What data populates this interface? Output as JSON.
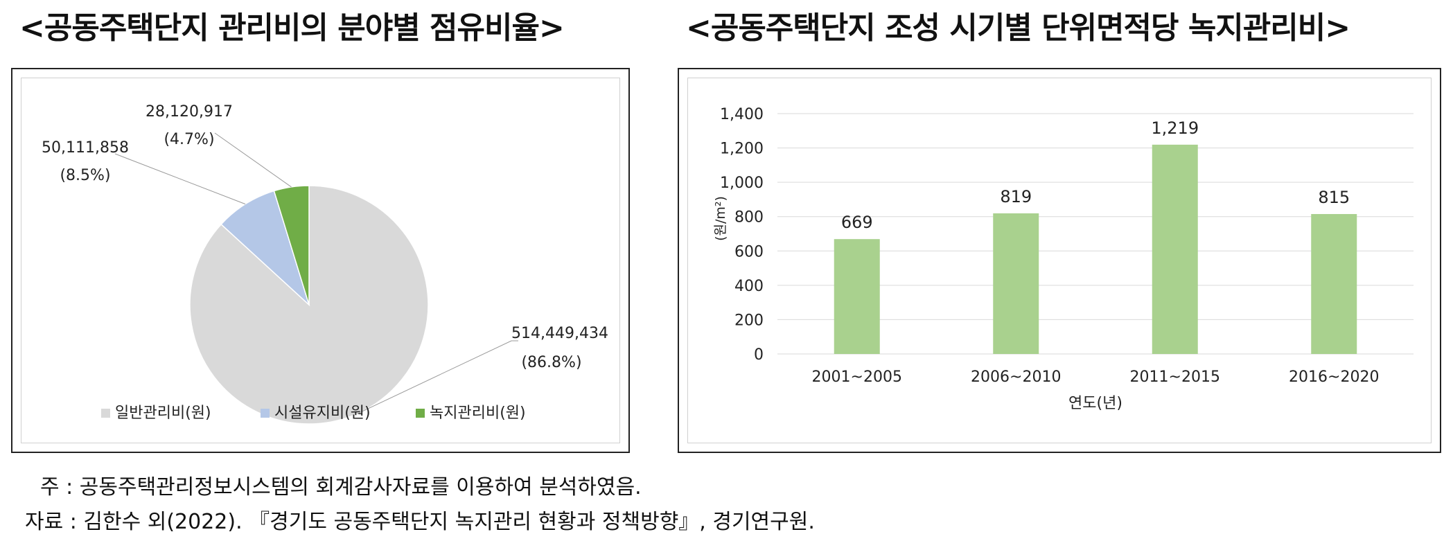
{
  "titles": {
    "left": "<공동주택단지 관리비의 분야별 점유비율>",
    "right": "<공동주택단지 조성 시기별 단위면적당 녹지관리비>"
  },
  "chart_data": [
    {
      "type": "pie",
      "title": "",
      "slices": [
        {
          "name": "일반관리비(원)",
          "value": 514449434,
          "label": "514,449,434",
          "percent_label": "(86.8%)",
          "color": "#d9d9d9"
        },
        {
          "name": "시설유지비(원)",
          "value": 50111858,
          "label": "50,111,858",
          "percent_label": "(8.5%)",
          "color": "#b4c7e7"
        },
        {
          "name": "녹지관리비(원)",
          "value": 28120917,
          "label": "28,120,917",
          "percent_label": "(4.7%)",
          "color": "#70ad47"
        }
      ],
      "legend_position": "bottom"
    },
    {
      "type": "bar",
      "title": "",
      "categories": [
        "2001~2005",
        "2006~2010",
        "2011~2015",
        "2016~2020"
      ],
      "values": [
        669,
        819,
        1219,
        815
      ],
      "value_labels": [
        "669",
        "819",
        "1,219",
        "815"
      ],
      "xlabel": "연도(년)",
      "ylabel": "(원/m²)",
      "ylim": [
        0,
        1400
      ],
      "yticks": [
        0,
        200,
        400,
        600,
        800,
        1000,
        1200,
        1400
      ],
      "ytick_labels": [
        "0",
        "200",
        "400",
        "600",
        "800",
        "1,000",
        "1,200",
        "1,400"
      ],
      "bar_color": "#a9d18e",
      "grid": true
    }
  ],
  "footnotes": {
    "note": "주 : 공동주택관리정보시스템의 회계감사자료를 이용하여 분석하였음.",
    "source": "자료 : 김한수 외(2022). 『경기도 공동주택단지 녹지관리 현황과 정책방향』, 경기연구원."
  }
}
